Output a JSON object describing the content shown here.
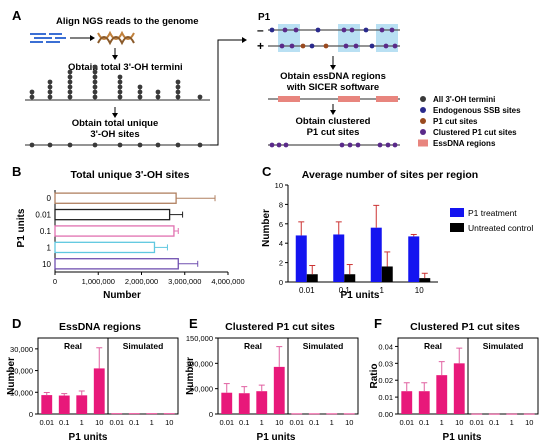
{
  "panelA": {
    "letter": "A",
    "steps": [
      "Align NGS reads to the genome",
      "Obtain total 3'-OH termini",
      "Obtain total unique",
      "3'-OH sites"
    ],
    "p1_label": "P1",
    "minus": "–",
    "plus": "+",
    "right_steps": [
      "Obtain essDNA regions",
      "with SICER software",
      "Obtain clustered",
      "P1 cut sites"
    ],
    "legend": [
      {
        "label": "All 3'-OH termini",
        "color": "#3a3a3a"
      },
      {
        "label": "Endogenous SSB sites",
        "color": "#2a2a8c"
      },
      {
        "label": "P1 cut sites",
        "color": "#9a4a1e"
      },
      {
        "label": "Clustered P1 cut sites",
        "color": "#5a2a8a"
      },
      {
        "label": "EssDNA regions",
        "color": "#e8857e"
      }
    ]
  },
  "panelB": {
    "letter": "B",
    "title": "Total unique 3'-OH sites",
    "ylabel": "P1 units",
    "xlabel": "Number",
    "xticks": [
      "0",
      "1,000,000",
      "2,000,000",
      "3,000,000",
      "4,000,000"
    ]
  },
  "panelC": {
    "letter": "C",
    "title": "Average number of sites per region",
    "ylabel": "Number",
    "xlabel": "P1 units",
    "yticks": [
      "0",
      "2",
      "4",
      "6",
      "8",
      "10"
    ],
    "legend": [
      {
        "label": "P1 treatment",
        "color": "#1414f0"
      },
      {
        "label": "Untreated control",
        "color": "#000000"
      }
    ]
  },
  "panelD": {
    "letter": "D",
    "title": "EssDNA regions",
    "ylabel": "Number",
    "xlabel": "P1 units",
    "yticks": [
      "0",
      "10,000",
      "20,000",
      "30,000"
    ],
    "real": "Real",
    "simulated": "Simulated"
  },
  "panelE": {
    "letter": "E",
    "title": "Clustered P1 cut sites",
    "ylabel": "Number",
    "xlabel": "P1 units",
    "yticks": [
      "0",
      "50,000",
      "100,000",
      "150,000"
    ],
    "real": "Real",
    "simulated": "Simulated"
  },
  "panelF": {
    "letter": "F",
    "title": "Clustered P1 cut sites",
    "ylabel": "Ratio",
    "xlabel": "P1 units",
    "yticks": [
      "0.00",
      "0.01",
      "0.02",
      "0.03",
      "0.04"
    ],
    "real": "Real",
    "simulated": "Simulated"
  },
  "colors": {
    "bar_pink": "#e8187a",
    "bar_blue": "#1414f0",
    "bar_black": "#000000",
    "essdna_pink": "#e8857e",
    "essdna_blue": "#a8d8f0",
    "dot_grey": "#3a3a3a",
    "dot_navy": "#2a2a8c",
    "dot_brown": "#9a4a1e",
    "dot_purple": "#5a2a8a"
  },
  "chart_data": [
    {
      "panel": "B",
      "type": "bar",
      "orientation": "horizontal",
      "title": "Total unique 3'-OH sites",
      "xlabel": "Number",
      "ylabel": "P1 units",
      "categories": [
        "0",
        "0.01",
        "0.1",
        "1",
        "10"
      ],
      "values": [
        2800000,
        2650000,
        2750000,
        2300000,
        2850000
      ],
      "errors": [
        900000,
        300000,
        100000,
        300000,
        450000
      ],
      "bar_colors": [
        "#b08060",
        "#222222",
        "#e070b0",
        "#60c8e0",
        "#7050b0"
      ],
      "xlim": [
        0,
        4000000
      ]
    },
    {
      "panel": "C",
      "type": "bar",
      "title": "Average number of sites per region",
      "xlabel": "P1 units",
      "ylabel": "Number",
      "categories": [
        "0.01",
        "0.1",
        "1",
        "10"
      ],
      "series": [
        {
          "name": "P1 treatment",
          "values": [
            4.8,
            4.9,
            5.6,
            4.7
          ],
          "errors": [
            1.4,
            1.3,
            2.3,
            0.2
          ]
        },
        {
          "name": "Untreated control",
          "values": [
            0.8,
            0.8,
            1.6,
            0.4
          ],
          "errors": [
            0.9,
            1.0,
            1.5,
            0.5
          ]
        }
      ],
      "ylim": [
        0,
        10
      ]
    },
    {
      "panel": "D",
      "type": "bar",
      "title": "EssDNA regions",
      "xlabel": "P1 units",
      "ylabel": "Number",
      "groups": [
        "Real",
        "Simulated"
      ],
      "categories": [
        "0.01",
        "0.1",
        "1",
        "10"
      ],
      "series": [
        {
          "name": "Real",
          "values": [
            8700,
            8500,
            8600,
            21000
          ],
          "errors": [
            1200,
            900,
            2000,
            9500
          ]
        },
        {
          "name": "Simulated",
          "values": [
            300,
            300,
            300,
            300
          ],
          "errors": [
            0,
            0,
            0,
            0
          ]
        }
      ],
      "ylim": [
        0,
        35000
      ]
    },
    {
      "panel": "E",
      "type": "bar",
      "title": "Clustered P1 cut sites",
      "xlabel": "P1 units",
      "ylabel": "Number",
      "groups": [
        "Real",
        "Simulated"
      ],
      "categories": [
        "0.01",
        "0.1",
        "1",
        "10"
      ],
      "series": [
        {
          "name": "Real",
          "values": [
            42000,
            41000,
            45000,
            93000
          ],
          "errors": [
            18000,
            13000,
            12000,
            40000
          ]
        },
        {
          "name": "Simulated",
          "values": [
            1000,
            1000,
            1000,
            1000
          ],
          "errors": [
            0,
            0,
            0,
            0
          ]
        }
      ],
      "ylim": [
        0,
        150000
      ]
    },
    {
      "panel": "F",
      "type": "bar",
      "title": "Clustered P1 cut sites",
      "xlabel": "P1 units",
      "ylabel": "Ratio",
      "groups": [
        "Real",
        "Simulated"
      ],
      "categories": [
        "0.01",
        "0.1",
        "1",
        "10"
      ],
      "series": [
        {
          "name": "Real",
          "values": [
            0.0135,
            0.0135,
            0.023,
            0.03
          ],
          "errors": [
            0.005,
            0.005,
            0.008,
            0.009
          ]
        },
        {
          "name": "Simulated",
          "values": [
            0.0002,
            0.0002,
            0.0002,
            0.0002
          ],
          "errors": [
            0,
            0,
            0,
            0
          ]
        }
      ],
      "ylim": [
        0,
        0.045
      ]
    }
  ]
}
